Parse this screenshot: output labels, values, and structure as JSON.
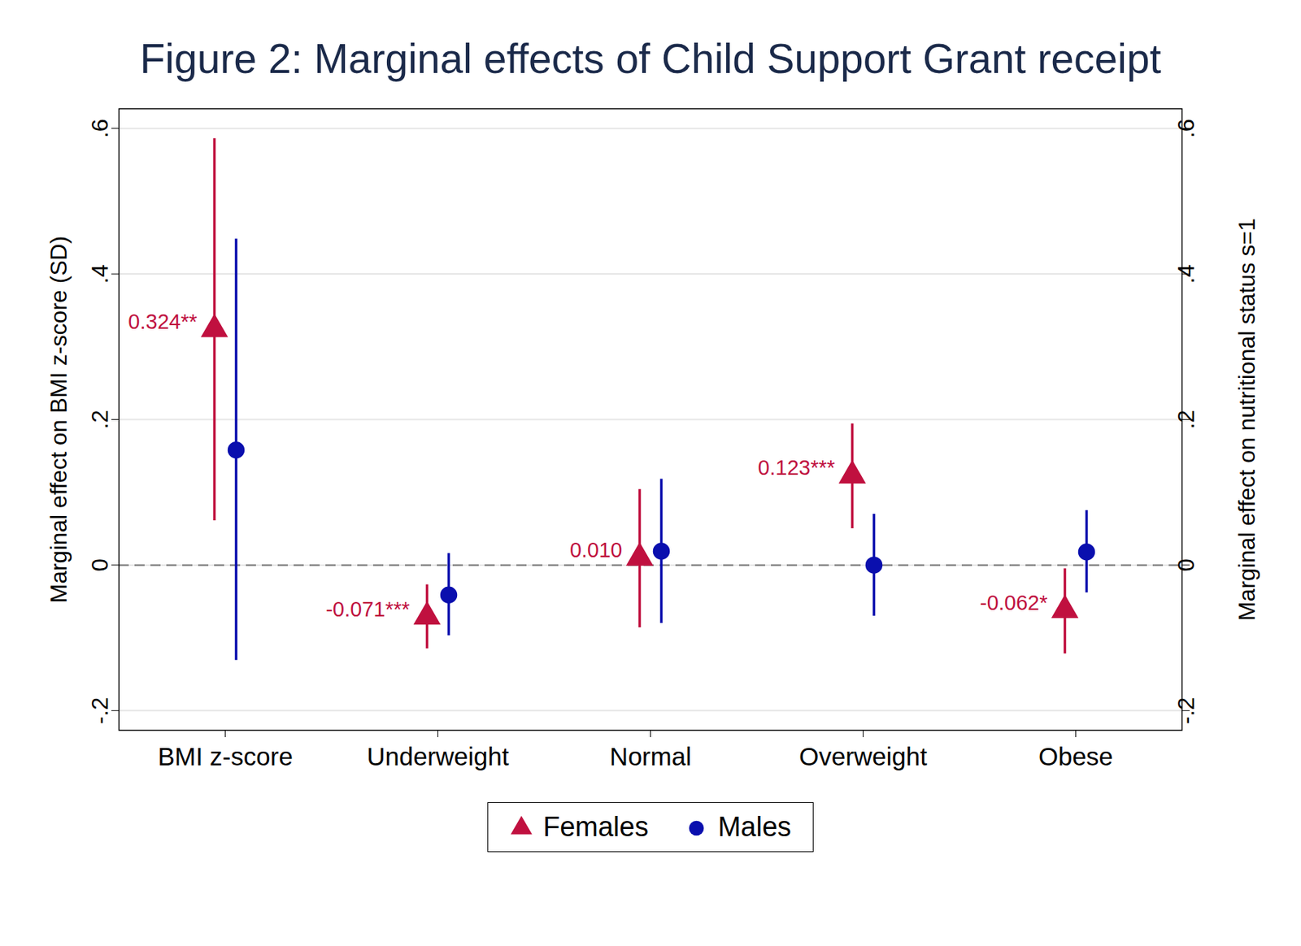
{
  "chart_data": {
    "type": "errorbar",
    "title": "Figure 2: Marginal effects of Child Support Grant receipt",
    "y_label": "Marginal effect on BMI z-score (SD)",
    "y2_label": "Marginal effect on nutritional status s=1",
    "categories": [
      "BMI z-score",
      "Underweight",
      "Normal",
      "Overweight",
      "Obese"
    ],
    "ylim": [
      -0.227,
      0.627
    ],
    "yticks": [
      {
        "value": -0.2,
        "label": "-.2"
      },
      0,
      {
        "value": 0.2,
        "label": ".2"
      },
      {
        "value": 0.4,
        "label": ".4"
      },
      {
        "value": 0.6,
        "label": ".6"
      }
    ],
    "y2lim": [
      -0.227,
      0.627
    ],
    "y2ticks": [
      {
        "value": -0.2,
        "label": "-.2"
      },
      0,
      {
        "value": 0.2,
        "label": ".2"
      },
      {
        "value": 0.4,
        "label": ".4"
      },
      {
        "value": 0.6,
        "label": ".6"
      }
    ],
    "grid": true,
    "legend": "bottom",
    "reference_line": 0,
    "series": [
      {
        "name": "Females",
        "color": "#c0103f",
        "marker": "triangle",
        "data_labels": true,
        "values": [
          0.324,
          -0.071,
          0.01,
          0.123,
          -0.062
        ],
        "value_labels": [
          "0.324**",
          "-0.071***",
          "0.010",
          "0.123***",
          "-0.062*"
        ],
        "ci_lower": [
          0.061,
          -0.115,
          -0.086,
          0.05,
          -0.122
        ],
        "ci_upper": [
          0.586,
          -0.027,
          0.104,
          0.194,
          -0.005
        ]
      },
      {
        "name": "Males",
        "color": "#0a0fae",
        "marker": "circle",
        "data_labels": false,
        "values": [
          0.158,
          -0.041,
          0.019,
          0.0,
          0.018
        ],
        "ci_lower": [
          -0.131,
          -0.097,
          -0.08,
          -0.07,
          -0.038
        ],
        "ci_upper": [
          0.448,
          0.016,
          0.118,
          0.07,
          0.075
        ]
      }
    ]
  }
}
